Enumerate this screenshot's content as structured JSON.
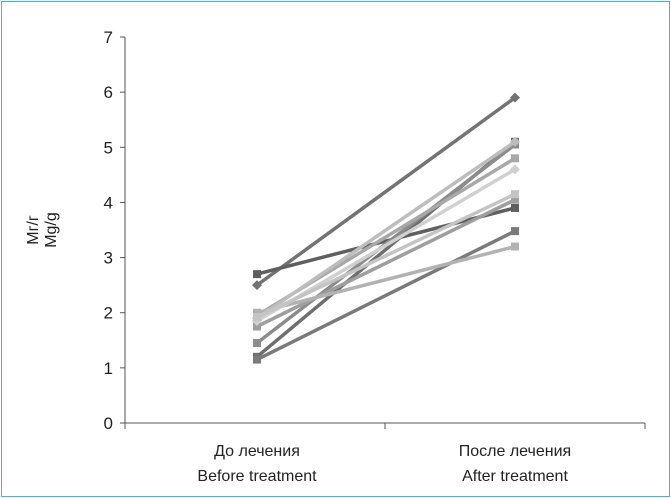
{
  "chart_data": {
    "type": "line",
    "categories": [
      {
        "line1": "До лечения",
        "line2": "Before treatment"
      },
      {
        "line1": "После лечения",
        "line2": "After treatment"
      }
    ],
    "ylabel": {
      "line1": "Мг/г",
      "line2": "Mg/g"
    },
    "ylim": [
      0,
      7
    ],
    "yticks": [
      0,
      1,
      2,
      3,
      4,
      5,
      6,
      7
    ],
    "grid": false,
    "series": [
      {
        "values": [
          2.5,
          5.9
        ],
        "color": "#737373",
        "marker": "diamond"
      },
      {
        "values": [
          2.7,
          3.9
        ],
        "color": "#5f5f5f",
        "marker": "square"
      },
      {
        "values": [
          1.2,
          5.1
        ],
        "color": "#6e6e6e",
        "marker": "square"
      },
      {
        "values": [
          1.15,
          3.48
        ],
        "color": "#7a7a7a",
        "marker": "square"
      },
      {
        "values": [
          1.45,
          5.05
        ],
        "color": "#8c8c8c",
        "marker": "square"
      },
      {
        "values": [
          1.75,
          4.05
        ],
        "color": "#9e9e9e",
        "marker": "square"
      },
      {
        "values": [
          1.95,
          4.8
        ],
        "color": "#a8a8a8",
        "marker": "square"
      },
      {
        "values": [
          2.0,
          3.2
        ],
        "color": "#b2b2b2",
        "marker": "square"
      },
      {
        "values": [
          1.9,
          5.1
        ],
        "color": "#bdbdbd",
        "marker": "diamond"
      },
      {
        "values": [
          1.85,
          4.6
        ],
        "color": "#d0d0d0",
        "marker": "diamond"
      },
      {
        "values": [
          1.92,
          4.15
        ],
        "color": "#c4c4c4",
        "marker": "square"
      }
    ]
  }
}
